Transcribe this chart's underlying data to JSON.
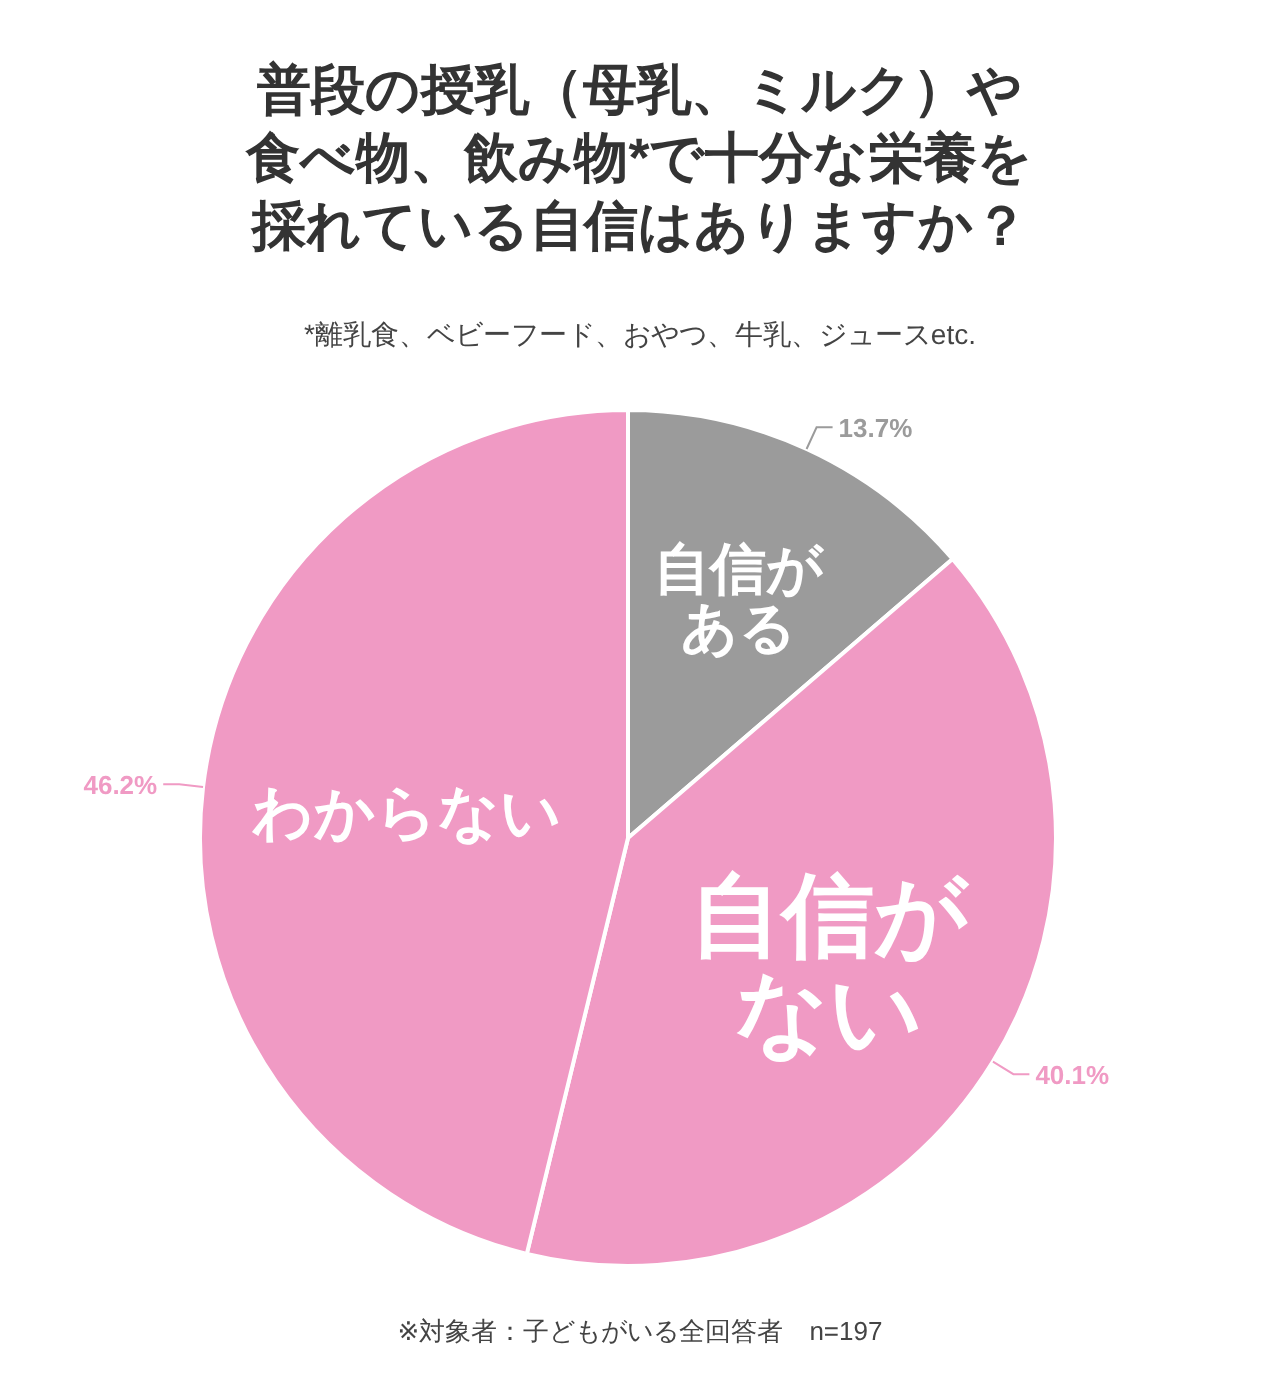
{
  "chart_data": {
    "type": "pie",
    "title": "普段の授乳（母乳、ミルク）や食べ物、飲み物*で十分な栄養を採れている自信はありますか？",
    "subtitle": "*離乳食、ベビーフード、おやつ、牛乳、ジュースetc.",
    "categories": [
      "自信がある",
      "自信がない",
      "わからない"
    ],
    "values": [
      13.7,
      40.1,
      46.2
    ],
    "colors": [
      "#9b9b9b",
      "#f09ac4",
      "#f09ac4"
    ],
    "value_labels": [
      "13.7%",
      "40.1%",
      "46.2%"
    ],
    "annotations": [
      "※対象者：子どもがいる全回答者　n=197"
    ]
  }
}
